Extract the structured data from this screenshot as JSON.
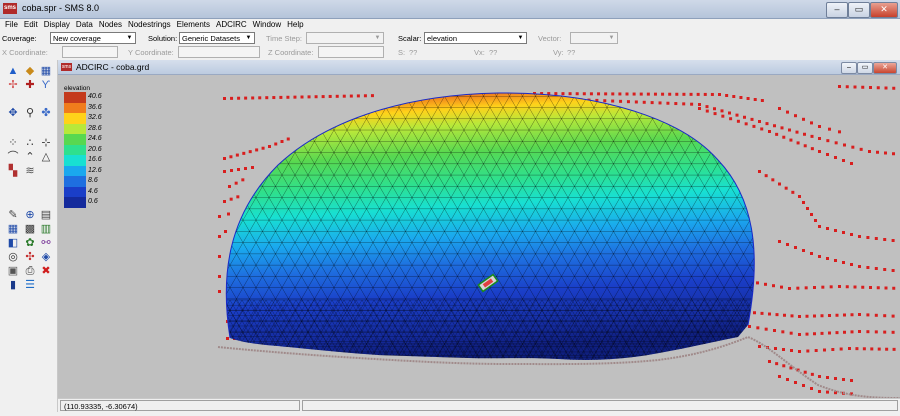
{
  "window": {
    "title": "coba.spr - SMS 8.0",
    "app_icon_text": "sms"
  },
  "menu": [
    "File",
    "Edit",
    "Display",
    "Data",
    "Nodes",
    "Nodestrings",
    "Elements",
    "ADCIRC",
    "Window",
    "Help"
  ],
  "toolbar1": {
    "coverage_label": "Coverage:",
    "coverage_value": "New coverage",
    "solution_label": "Solution:",
    "solution_value": "Generic Datasets",
    "timestep_label": "Time Step:",
    "scalar_label": "Scalar:",
    "scalar_value": "elevation",
    "vector_label": "Vector:"
  },
  "toolbar2": {
    "x_label": "X Coordinate:",
    "y_label": "Y Coordinate:",
    "z_label": "Z Coordinate:",
    "s_label": "S:",
    "s_value": "??",
    "vx_label": "Vx:",
    "vx_value": "??",
    "vy_label": "Vy:",
    "vy_value": "??"
  },
  "child_window": {
    "title": "ADCIRC - coba.grd",
    "icon_text": "sms"
  },
  "legend": {
    "title": "elevation",
    "entries": [
      {
        "label": "40.6",
        "color": "#c43a1c"
      },
      {
        "label": "36.6",
        "color": "#f07c1c"
      },
      {
        "label": "32.6",
        "color": "#ffd21a"
      },
      {
        "label": "28.6",
        "color": "#b8e83a"
      },
      {
        "label": "24.6",
        "color": "#58d850"
      },
      {
        "label": "20.6",
        "color": "#2ee08e"
      },
      {
        "label": "16.6",
        "color": "#18e0d2"
      },
      {
        "label": "12.6",
        "color": "#1aa8ee"
      },
      {
        "label": "8.6",
        "color": "#1e6fe0"
      },
      {
        "label": "4.6",
        "color": "#1a3ec8"
      },
      {
        "label": "0.6",
        "color": "#142a9c"
      }
    ]
  },
  "status": {
    "coordinates": "(110.93335, -6.30674)"
  },
  "colors": {
    "boundary_nodes": "#d81e1e",
    "mesh_lines": "#000000",
    "domain_edge": "#1a2ac8"
  }
}
